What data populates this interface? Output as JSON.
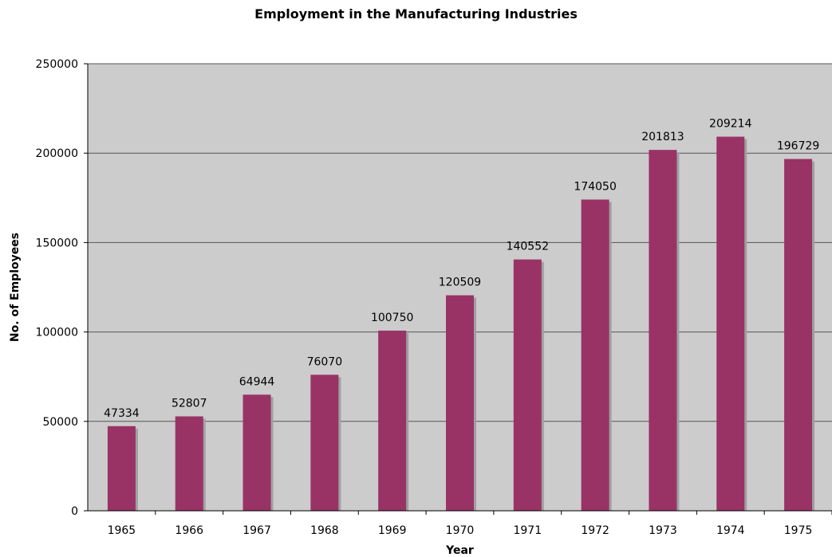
{
  "chart_data": {
    "type": "bar",
    "title": "Employment in the Manufacturing Industries",
    "xlabel": "Year",
    "ylabel": "No. of Employees",
    "categories": [
      "1965",
      "1966",
      "1967",
      "1968",
      "1969",
      "1970",
      "1971",
      "1972",
      "1973",
      "1974",
      "1975"
    ],
    "values": [
      47334,
      52807,
      64944,
      76070,
      100750,
      120509,
      140552,
      174050,
      201813,
      209214,
      196729
    ],
    "data_labels": [
      "47334",
      "52807",
      "64944",
      "76070",
      "100750",
      "120509",
      "140552",
      "174050",
      "201813",
      "209214",
      "196729"
    ],
    "ylim": [
      0,
      250000
    ],
    "yticks": [
      "0",
      "50000",
      "100000",
      "150000",
      "200000",
      "250000"
    ],
    "grid": true,
    "colors": {
      "bar": "#993366",
      "bar_shadow": "#a0a0a0",
      "plot_background": "#cccccc",
      "gridline": "#555555"
    }
  }
}
